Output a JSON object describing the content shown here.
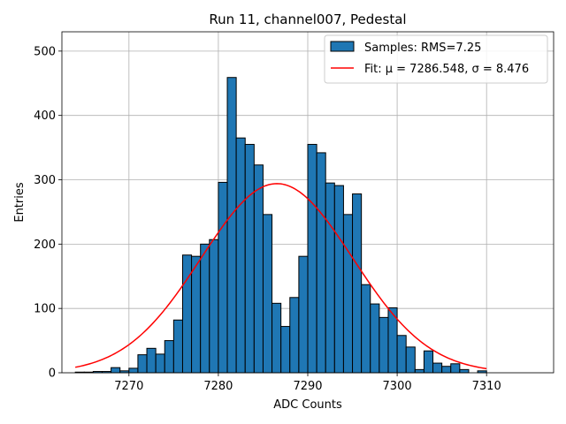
{
  "chart_data": {
    "type": "bar",
    "title": "Run 11, channel007, Pedestal",
    "xlabel": "ADC Counts",
    "ylabel": "Entries",
    "xlim": [
      7262.5,
      7317.5
    ],
    "ylim": [
      0,
      530
    ],
    "xticks": [
      7270,
      7280,
      7290,
      7300,
      7310
    ],
    "yticks": [
      0,
      100,
      200,
      300,
      400,
      500
    ],
    "grid": true,
    "legend_position": "top-right",
    "histogram": {
      "name": "Samples: RMS=7.25",
      "color": "#1f77b4",
      "edge_color": "#000000",
      "bin_edges": [
        7264,
        7265,
        7266,
        7267,
        7268,
        7269,
        7270,
        7271,
        7272,
        7273,
        7274,
        7275,
        7276,
        7277,
        7278,
        7279,
        7280,
        7281,
        7282,
        7283,
        7284,
        7285,
        7286,
        7287,
        7288,
        7289,
        7290,
        7291,
        7292,
        7293,
        7294,
        7295,
        7296,
        7297,
        7298,
        7299,
        7300,
        7301,
        7302,
        7303,
        7304,
        7305,
        7306,
        7307,
        7308,
        7309,
        7310
      ],
      "counts": [
        1,
        1,
        2,
        2,
        8,
        3,
        7,
        28,
        38,
        29,
        50,
        82,
        183,
        181,
        200,
        207,
        296,
        459,
        365,
        355,
        323,
        246,
        108,
        72,
        117,
        181,
        355,
        342,
        295,
        291,
        246,
        278,
        137,
        107,
        86,
        101,
        58,
        40,
        5,
        34,
        15,
        10,
        14,
        5,
        0,
        3
      ]
    },
    "fit": {
      "name": "Fit: μ = 7286.548, σ = 8.476",
      "color": "#ff0000",
      "mu": 7286.548,
      "sigma": 8.476,
      "amplitude": 294,
      "x_range": [
        7264,
        7310
      ]
    }
  }
}
